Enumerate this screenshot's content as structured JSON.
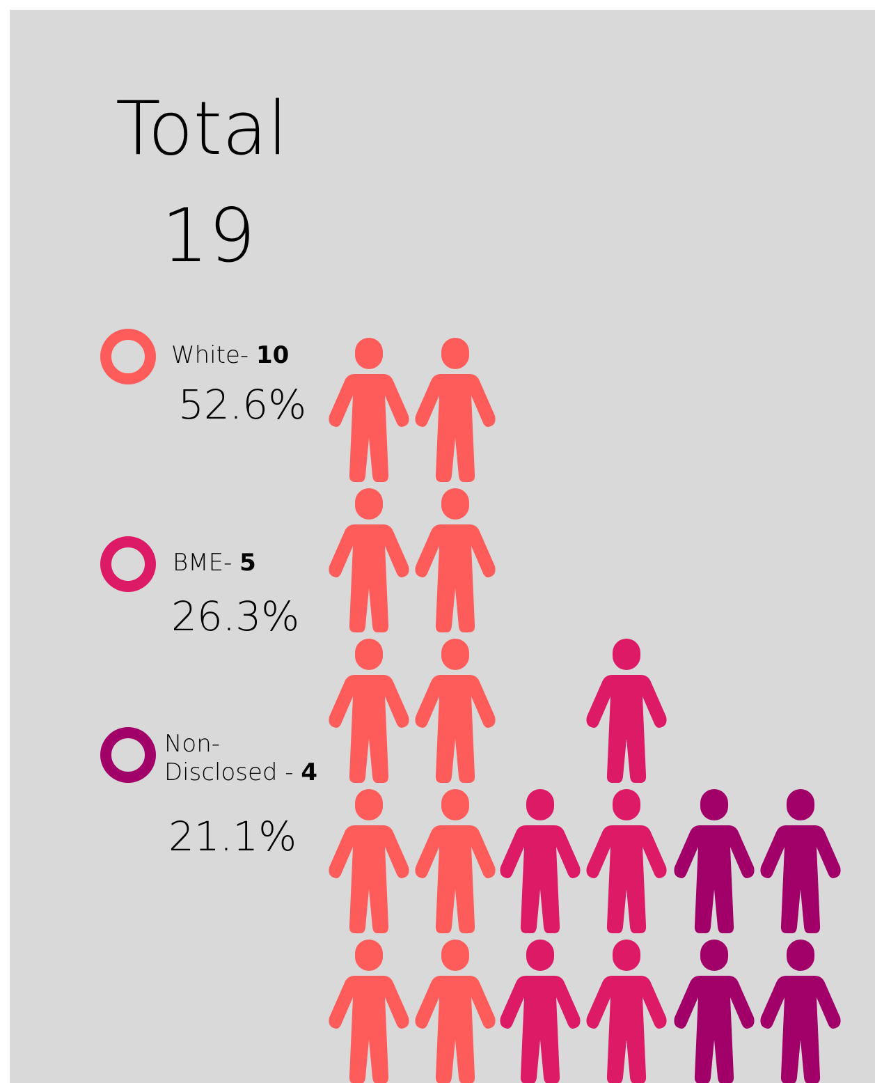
{
  "title": "Total",
  "total": "19",
  "legend": [
    {
      "label": "White- ",
      "count": "10",
      "percent": "52.6%",
      "color": "#fe5b5b"
    },
    {
      "label": "BME- ",
      "count": "5",
      "percent": "26.3%",
      "color": "#dc1a65"
    },
    {
      "label_line1": "Non-",
      "label": "Disclosed - ",
      "count": "4",
      "percent": "21.1%",
      "color": "#a10069"
    }
  ],
  "chart_data": {
    "type": "pictogram",
    "icon": "person-icon",
    "unit": "1 person",
    "total": 19,
    "series": [
      {
        "name": "White",
        "value": 10,
        "percent": 52.6,
        "color": "#fe5b5b"
      },
      {
        "name": "BME",
        "value": 5,
        "percent": 26.3,
        "color": "#dc1a65"
      },
      {
        "name": "Non-Disclosed",
        "value": 4,
        "percent": 21.1,
        "color": "#a10069"
      }
    ]
  }
}
